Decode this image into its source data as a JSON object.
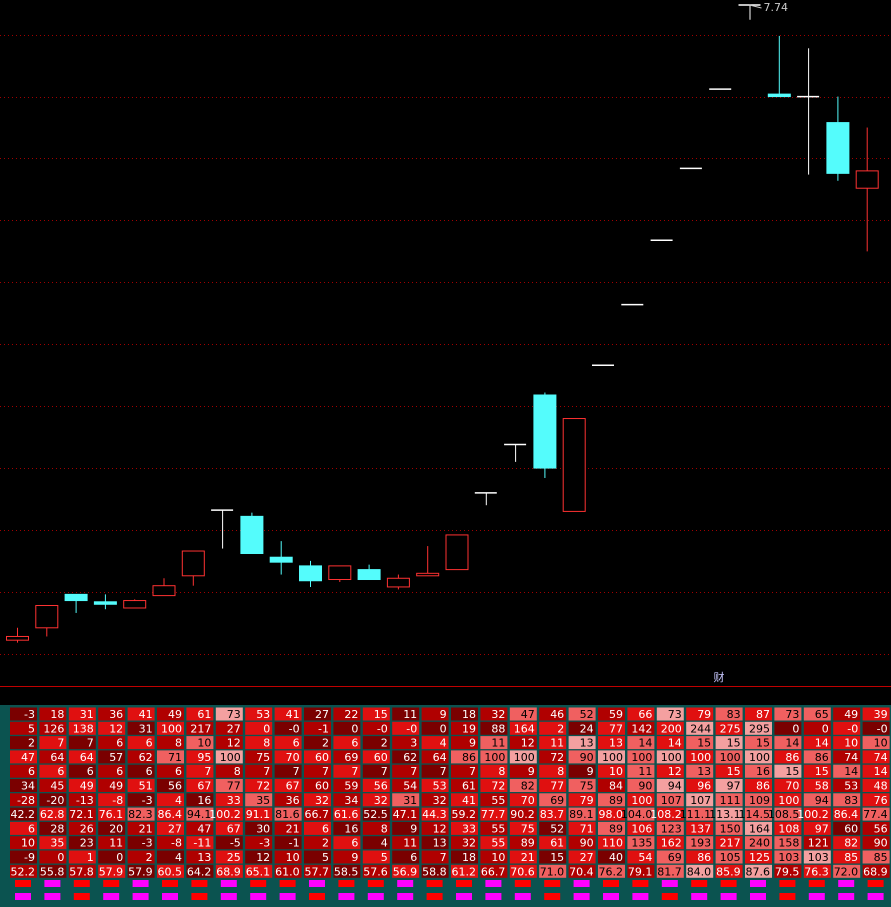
{
  "chart_data": {
    "type": "candlestick",
    "annotation": "财",
    "open": [
      2.61,
      2.71,
      2.98,
      2.92,
      2.87,
      2.97,
      3.13,
      3.66,
      3.61,
      3.28,
      3.21,
      3.1,
      3.18,
      3.04,
      3.13,
      3.18,
      3.8,
      4.19,
      4.59,
      3.65,
      4.83,
      5.32,
      5.84,
      6.42,
      7.06,
      7.74,
      7.02,
      7.0,
      6.79,
      6.26
    ],
    "high": [
      2.71,
      2.89,
      2.98,
      2.98,
      2.94,
      3.11,
      3.33,
      3.66,
      3.64,
      3.41,
      3.25,
      3.21,
      3.22,
      3.14,
      3.37,
      3.46,
      3.8,
      4.19,
      4.61,
      4.4,
      4.83,
      5.32,
      5.84,
      6.42,
      7.06,
      7.74,
      7.49,
      7.39,
      7.0,
      6.75
    ],
    "low": [
      2.59,
      2.64,
      2.83,
      2.86,
      2.87,
      2.97,
      3.05,
      3.35,
      3.31,
      3.14,
      3.04,
      3.08,
      3.1,
      3.02,
      3.13,
      3.18,
      3.7,
      4.05,
      3.92,
      3.65,
      4.83,
      5.32,
      5.84,
      6.42,
      7.06,
      7.62,
      7.0,
      6.37,
      6.32,
      5.75
    ],
    "close": [
      2.64,
      2.89,
      2.93,
      2.9,
      2.93,
      3.05,
      3.33,
      3.66,
      3.31,
      3.24,
      3.09,
      3.21,
      3.1,
      3.11,
      3.15,
      3.46,
      3.8,
      4.19,
      4.0,
      4.4,
      4.83,
      5.32,
      5.84,
      6.42,
      7.06,
      7.74,
      7.0,
      7.0,
      6.38,
      6.4
    ],
    "ylim": [
      2.24,
      7.78
    ],
    "yticks": [
      2.5,
      3,
      3.5,
      4,
      4.5,
      5,
      5.5,
      6,
      6.5,
      7,
      7.5
    ],
    "grid": true,
    "up_color": "#ff3232",
    "down_color": "#54fcfc",
    "flat_color": "#ffffff",
    "grid_color": "#a00000"
  },
  "table": {
    "rows": [
      [
        "-3",
        "18",
        "31",
        "36",
        "41",
        "49",
        "61",
        "73",
        "53",
        "41",
        "27",
        "22",
        "15",
        "11",
        "9",
        "18",
        "32",
        "47",
        "46",
        "52",
        "59",
        "66",
        "73",
        "79",
        "83",
        "87",
        "73",
        "65",
        "49",
        "39"
      ],
      [
        "5",
        "126",
        "138",
        "12",
        "31",
        "100",
        "217",
        "27",
        "0",
        "-0",
        "-1",
        "0",
        "-0",
        "-0",
        "0",
        "19",
        "88",
        "164",
        "2",
        "24",
        "77",
        "142",
        "200",
        "244",
        "275",
        "295",
        "0",
        "0",
        "-0",
        "-0"
      ],
      [
        "2",
        "7",
        "7",
        "6",
        "6",
        "8",
        "10",
        "12",
        "8",
        "6",
        "2",
        "6",
        "2",
        "3",
        "4",
        "9",
        "11",
        "12",
        "11",
        "13",
        "13",
        "14",
        "14",
        "15",
        "15",
        "15",
        "14",
        "14",
        "10",
        "10"
      ],
      [
        "47",
        "64",
        "64",
        "57",
        "62",
        "71",
        "95",
        "100",
        "75",
        "70",
        "60",
        "69",
        "60",
        "62",
        "64",
        "86",
        "100",
        "100",
        "72",
        "90",
        "100",
        "100",
        "100",
        "100",
        "100",
        "100",
        "86",
        "86",
        "74",
        "74"
      ],
      [
        "6",
        "6",
        "6",
        "6",
        "6",
        "6",
        "7",
        "8",
        "7",
        "7",
        "7",
        "7",
        "7",
        "7",
        "7",
        "7",
        "8",
        "9",
        "8",
        "9",
        "10",
        "11",
        "12",
        "13",
        "15",
        "16",
        "15",
        "15",
        "14",
        "14"
      ],
      [
        "34",
        "45",
        "49",
        "49",
        "51",
        "56",
        "67",
        "77",
        "72",
        "67",
        "60",
        "59",
        "56",
        "54",
        "53",
        "61",
        "72",
        "82",
        "77",
        "75",
        "84",
        "90",
        "94",
        "96",
        "97",
        "86",
        "70",
        "58",
        "53",
        "48"
      ],
      [
        "-28",
        "-20",
        "-13",
        "-8",
        "-3",
        "4",
        "16",
        "33",
        "35",
        "36",
        "32",
        "34",
        "32",
        "31",
        "32",
        "41",
        "55",
        "70",
        "69",
        "79",
        "89",
        "100",
        "107",
        "107",
        "111",
        "109",
        "100",
        "94",
        "83",
        "76"
      ],
      [
        "42.2",
        "62.8",
        "72.1",
        "76.1",
        "82.3",
        "86.4",
        "94.1",
        "100.2",
        "91.1",
        "81.6",
        "66.7",
        "61.6",
        "52.5",
        "47.1",
        "44.3",
        "59.2",
        "77.7",
        "90.2",
        "83.7",
        "89.1",
        "98.0",
        "104.0",
        "108.2",
        "111.1",
        "113.1",
        "114.5",
        "108.5",
        "100.2",
        "86.4",
        "77.4"
      ],
      [
        "6",
        "28",
        "26",
        "20",
        "21",
        "27",
        "47",
        "67",
        "30",
        "21",
        "6",
        "16",
        "8",
        "9",
        "12",
        "33",
        "55",
        "75",
        "52",
        "71",
        "89",
        "106",
        "123",
        "137",
        "150",
        "164",
        "108",
        "97",
        "60",
        "56"
      ],
      [
        "10",
        "35",
        "23",
        "11",
        "-3",
        "-8",
        "-11",
        "-5",
        "-3",
        "-1",
        "2",
        "6",
        "4",
        "11",
        "13",
        "32",
        "55",
        "89",
        "61",
        "90",
        "110",
        "135",
        "162",
        "193",
        "217",
        "240",
        "158",
        "121",
        "82",
        "90"
      ],
      [
        "-9",
        "0",
        "1",
        "0",
        "2",
        "4",
        "13",
        "25",
        "12",
        "10",
        "5",
        "9",
        "5",
        "6",
        "7",
        "18",
        "10",
        "21",
        "15",
        "27",
        "40",
        "54",
        "69",
        "86",
        "105",
        "125",
        "103",
        "103",
        "85",
        "85"
      ],
      [
        "52.2",
        "55.8",
        "57.8",
        "57.9",
        "57.9",
        "60.5",
        "64.2",
        "68.9",
        "65.1",
        "61.0",
        "57.7",
        "58.5",
        "57.6",
        "56.9",
        "58.8",
        "61.2",
        "66.7",
        "70.6",
        "71.0",
        "70.4",
        "76.2",
        "79.1",
        "81.7",
        "84.0",
        "85.9",
        "87.6",
        "79.5",
        "76.3",
        "72.0",
        "68.9"
      ]
    ]
  }
}
